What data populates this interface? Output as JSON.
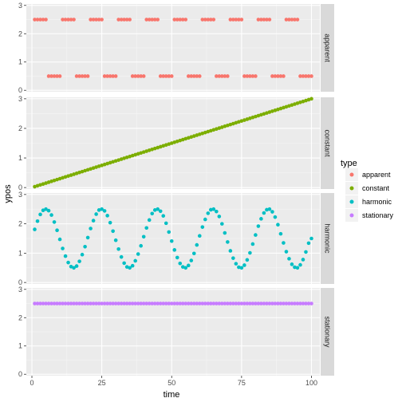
{
  "chart_data": {
    "type": "scatter",
    "xlabel": "time",
    "ylabel": "ypos",
    "xlim": [
      -2,
      103
    ],
    "ylim": [
      -0.05,
      3.05
    ],
    "x_ticks": [
      0,
      25,
      50,
      75,
      100
    ],
    "y_ticks": [
      0,
      1,
      2,
      3
    ],
    "grid": true,
    "facet_layout": "rows",
    "legend": {
      "title": "type",
      "position": "right",
      "entries": [
        "apparent",
        "constant",
        "harmonic",
        "stationary"
      ]
    },
    "colors": {
      "apparent": "#F8766D",
      "constant": "#7CAE00",
      "harmonic": "#00BFC4",
      "stationary": "#C77CFF"
    },
    "series": [
      {
        "name": "apparent",
        "x": [
          1,
          2,
          3,
          4,
          5,
          6,
          7,
          8,
          9,
          10,
          11,
          12,
          13,
          14,
          15,
          16,
          17,
          18,
          19,
          20,
          21,
          22,
          23,
          24,
          25,
          26,
          27,
          28,
          29,
          30,
          31,
          32,
          33,
          34,
          35,
          36,
          37,
          38,
          39,
          40,
          41,
          42,
          43,
          44,
          45,
          46,
          47,
          48,
          49,
          50,
          51,
          52,
          53,
          54,
          55,
          56,
          57,
          58,
          59,
          60,
          61,
          62,
          63,
          64,
          65,
          66,
          67,
          68,
          69,
          70,
          71,
          72,
          73,
          74,
          75,
          76,
          77,
          78,
          79,
          80,
          81,
          82,
          83,
          84,
          85,
          86,
          87,
          88,
          89,
          90,
          91,
          92,
          93,
          94,
          95,
          96,
          97,
          98,
          99,
          100
        ],
        "y": [
          2.5,
          2.5,
          2.5,
          2.5,
          2.5,
          0.5,
          0.5,
          0.5,
          0.5,
          0.5,
          2.5,
          2.5,
          2.5,
          2.5,
          2.5,
          0.5,
          0.5,
          0.5,
          0.5,
          0.5,
          2.5,
          2.5,
          2.5,
          2.5,
          2.5,
          0.5,
          0.5,
          0.5,
          0.5,
          0.5,
          2.5,
          2.5,
          2.5,
          2.5,
          2.5,
          0.5,
          0.5,
          0.5,
          0.5,
          0.5,
          2.5,
          2.5,
          2.5,
          2.5,
          2.5,
          0.5,
          0.5,
          0.5,
          0.5,
          0.5,
          2.5,
          2.5,
          2.5,
          2.5,
          2.5,
          0.5,
          0.5,
          0.5,
          0.5,
          0.5,
          2.5,
          2.5,
          2.5,
          2.5,
          2.5,
          0.5,
          0.5,
          0.5,
          0.5,
          0.5,
          2.5,
          2.5,
          2.5,
          2.5,
          2.5,
          0.5,
          0.5,
          0.5,
          0.5,
          0.5,
          2.5,
          2.5,
          2.5,
          2.5,
          2.5,
          0.5,
          0.5,
          0.5,
          0.5,
          0.5,
          2.5,
          2.5,
          2.5,
          2.5,
          2.5,
          0.5,
          0.5,
          0.5,
          0.5,
          0.5
        ]
      },
      {
        "name": "constant",
        "x": [
          1,
          2,
          3,
          4,
          5,
          6,
          7,
          8,
          9,
          10,
          11,
          12,
          13,
          14,
          15,
          16,
          17,
          18,
          19,
          20,
          21,
          22,
          23,
          24,
          25,
          26,
          27,
          28,
          29,
          30,
          31,
          32,
          33,
          34,
          35,
          36,
          37,
          38,
          39,
          40,
          41,
          42,
          43,
          44,
          45,
          46,
          47,
          48,
          49,
          50,
          51,
          52,
          53,
          54,
          55,
          56,
          57,
          58,
          59,
          60,
          61,
          62,
          63,
          64,
          65,
          66,
          67,
          68,
          69,
          70,
          71,
          72,
          73,
          74,
          75,
          76,
          77,
          78,
          79,
          80,
          81,
          82,
          83,
          84,
          85,
          86,
          87,
          88,
          89,
          90,
          91,
          92,
          93,
          94,
          95,
          96,
          97,
          98,
          99,
          100
        ],
        "y": [
          0.03,
          0.06,
          0.09,
          0.12,
          0.15,
          0.18,
          0.21,
          0.24,
          0.27,
          0.3,
          0.33,
          0.36,
          0.39,
          0.42,
          0.45,
          0.48,
          0.51,
          0.54,
          0.57,
          0.6,
          0.63,
          0.66,
          0.69,
          0.72,
          0.75,
          0.78,
          0.81,
          0.84,
          0.87,
          0.9,
          0.93,
          0.96,
          0.99,
          1.02,
          1.05,
          1.08,
          1.11,
          1.14,
          1.17,
          1.2,
          1.23,
          1.26,
          1.29,
          1.32,
          1.35,
          1.38,
          1.41,
          1.44,
          1.47,
          1.5,
          1.53,
          1.56,
          1.59,
          1.62,
          1.65,
          1.68,
          1.71,
          1.74,
          1.77,
          1.8,
          1.83,
          1.86,
          1.89,
          1.92,
          1.95,
          1.98,
          2.01,
          2.04,
          2.07,
          2.1,
          2.13,
          2.16,
          2.19,
          2.22,
          2.25,
          2.28,
          2.31,
          2.34,
          2.37,
          2.4,
          2.43,
          2.46,
          2.49,
          2.52,
          2.55,
          2.58,
          2.61,
          2.64,
          2.67,
          2.7,
          2.73,
          2.76,
          2.79,
          2.82,
          2.85,
          2.88,
          2.91,
          2.94,
          2.97,
          3.0
        ]
      },
      {
        "name": "harmonic",
        "x": [
          1,
          2,
          3,
          4,
          5,
          6,
          7,
          8,
          9,
          10,
          11,
          12,
          13,
          14,
          15,
          16,
          17,
          18,
          19,
          20,
          21,
          22,
          23,
          24,
          25,
          26,
          27,
          28,
          29,
          30,
          31,
          32,
          33,
          34,
          35,
          36,
          37,
          38,
          39,
          40,
          41,
          42,
          43,
          44,
          45,
          46,
          47,
          48,
          49,
          50,
          51,
          52,
          53,
          54,
          55,
          56,
          57,
          58,
          59,
          60,
          61,
          62,
          63,
          64,
          65,
          66,
          67,
          68,
          69,
          70,
          71,
          72,
          73,
          74,
          75,
          76,
          77,
          78,
          79,
          80,
          81,
          82,
          83,
          84,
          85,
          86,
          87,
          88,
          89,
          90,
          91,
          92,
          93,
          94,
          95,
          96,
          97,
          98,
          99,
          100
        ],
        "y": [
          1.81,
          2.09,
          2.32,
          2.46,
          2.5,
          2.45,
          2.3,
          2.06,
          1.78,
          1.47,
          1.16,
          0.9,
          0.68,
          0.54,
          0.5,
          0.56,
          0.72,
          0.95,
          1.22,
          1.53,
          1.84,
          2.11,
          2.33,
          2.47,
          2.5,
          2.44,
          2.28,
          2.04,
          1.75,
          1.44,
          1.14,
          0.87,
          0.66,
          0.53,
          0.5,
          0.57,
          0.74,
          0.97,
          1.25,
          1.56,
          1.86,
          2.13,
          2.35,
          2.47,
          2.5,
          2.43,
          2.27,
          2.02,
          1.72,
          1.41,
          1.11,
          0.85,
          0.65,
          0.53,
          0.5,
          0.58,
          0.75,
          0.99,
          1.28,
          1.59,
          1.89,
          2.15,
          2.36,
          2.48,
          2.5,
          2.42,
          2.25,
          2.0,
          1.69,
          1.38,
          1.08,
          0.83,
          0.64,
          0.52,
          0.5,
          0.59,
          0.77,
          1.01,
          1.31,
          1.62,
          1.92,
          2.17,
          2.37,
          2.48,
          2.5,
          2.41,
          2.23,
          1.97,
          1.66,
          1.35,
          1.05,
          0.81,
          0.62,
          0.52,
          0.5,
          0.6,
          0.78,
          1.04,
          1.34,
          1.5
        ]
      },
      {
        "name": "stationary",
        "x": [
          1,
          2,
          3,
          4,
          5,
          6,
          7,
          8,
          9,
          10,
          11,
          12,
          13,
          14,
          15,
          16,
          17,
          18,
          19,
          20,
          21,
          22,
          23,
          24,
          25,
          26,
          27,
          28,
          29,
          30,
          31,
          32,
          33,
          34,
          35,
          36,
          37,
          38,
          39,
          40,
          41,
          42,
          43,
          44,
          45,
          46,
          47,
          48,
          49,
          50,
          51,
          52,
          53,
          54,
          55,
          56,
          57,
          58,
          59,
          60,
          61,
          62,
          63,
          64,
          65,
          66,
          67,
          68,
          69,
          70,
          71,
          72,
          73,
          74,
          75,
          76,
          77,
          78,
          79,
          80,
          81,
          82,
          83,
          84,
          85,
          86,
          87,
          88,
          89,
          90,
          91,
          92,
          93,
          94,
          95,
          96,
          97,
          98,
          99,
          100
        ],
        "y": [
          2.5,
          2.5,
          2.5,
          2.5,
          2.5,
          2.5,
          2.5,
          2.5,
          2.5,
          2.5,
          2.5,
          2.5,
          2.5,
          2.5,
          2.5,
          2.5,
          2.5,
          2.5,
          2.5,
          2.5,
          2.5,
          2.5,
          2.5,
          2.5,
          2.5,
          2.5,
          2.5,
          2.5,
          2.5,
          2.5,
          2.5,
          2.5,
          2.5,
          2.5,
          2.5,
          2.5,
          2.5,
          2.5,
          2.5,
          2.5,
          2.5,
          2.5,
          2.5,
          2.5,
          2.5,
          2.5,
          2.5,
          2.5,
          2.5,
          2.5,
          2.5,
          2.5,
          2.5,
          2.5,
          2.5,
          2.5,
          2.5,
          2.5,
          2.5,
          2.5,
          2.5,
          2.5,
          2.5,
          2.5,
          2.5,
          2.5,
          2.5,
          2.5,
          2.5,
          2.5,
          2.5,
          2.5,
          2.5,
          2.5,
          2.5,
          2.5,
          2.5,
          2.5,
          2.5,
          2.5,
          2.5,
          2.5,
          2.5,
          2.5,
          2.5,
          2.5,
          2.5,
          2.5,
          2.5,
          2.5,
          2.5,
          2.5,
          2.5,
          2.5,
          2.5,
          2.5,
          2.5,
          2.5,
          2.5,
          2.5
        ]
      }
    ]
  }
}
